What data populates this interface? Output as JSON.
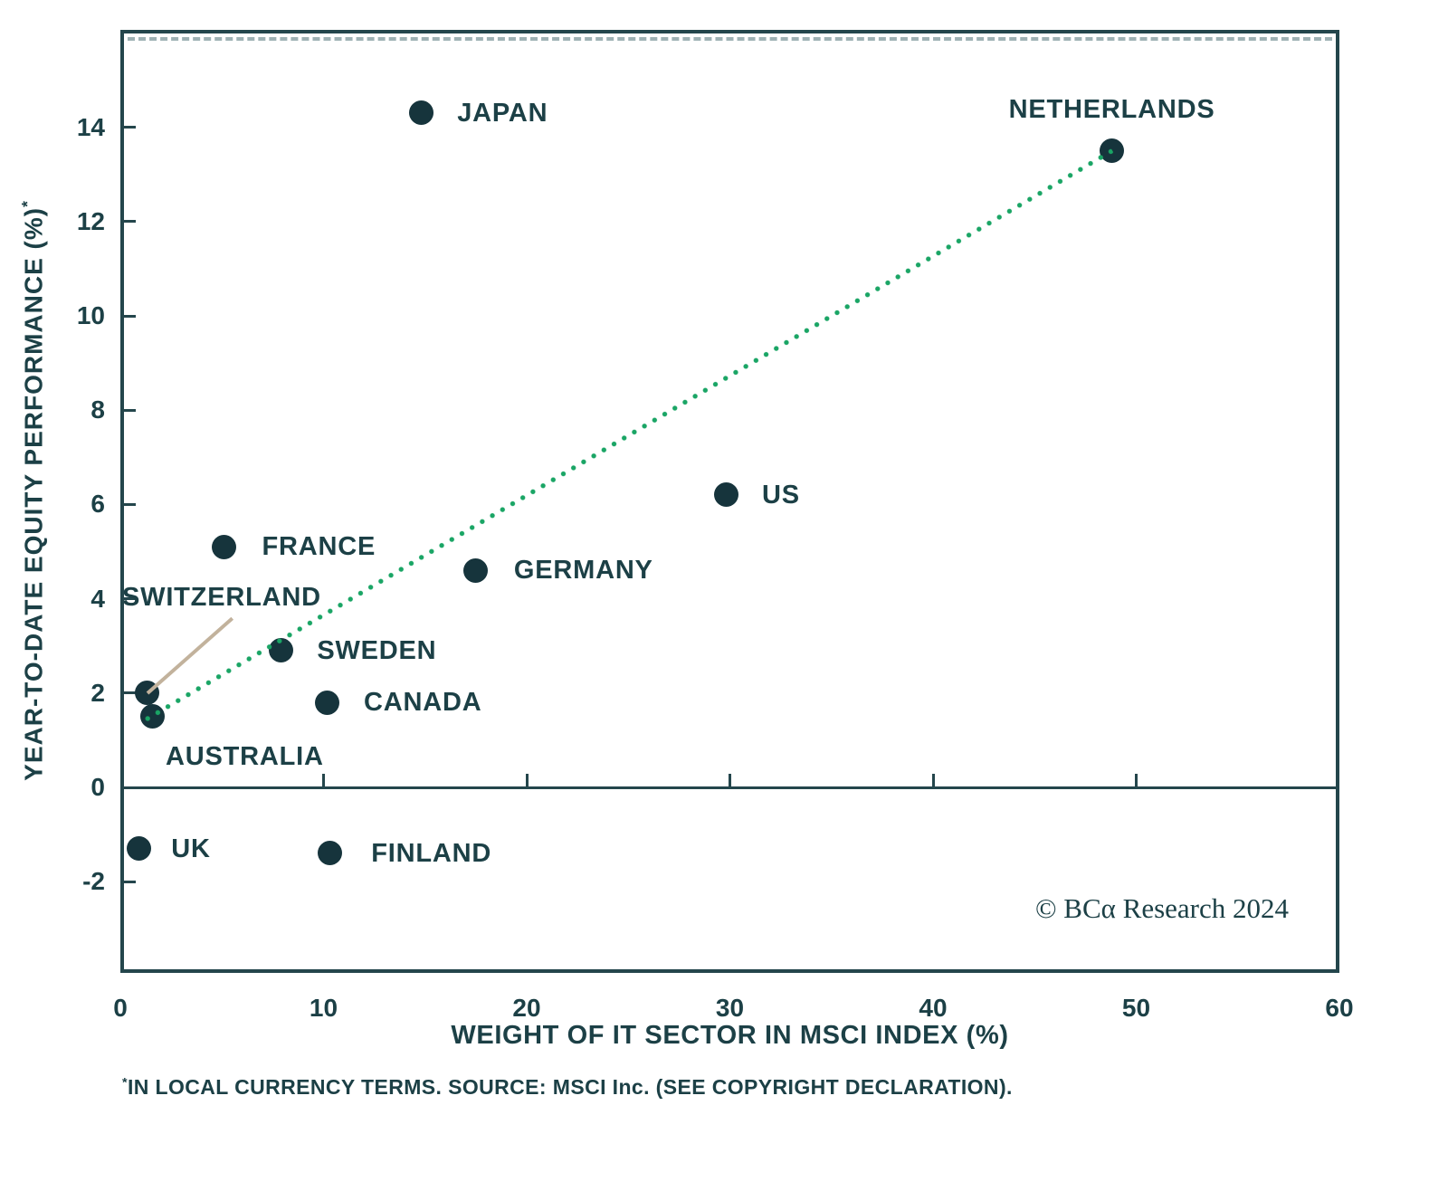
{
  "chart_data": {
    "type": "scatter",
    "title": "",
    "xlabel": "WEIGHT OF IT SECTOR IN MSCI INDEX (%)",
    "ylabel": "YEAR-TO-DATE EQUITY PERFORMANCE (%)",
    "ylabel_superscript": "*",
    "xlim": [
      0,
      60
    ],
    "ylim": [
      -3.9,
      16.1
    ],
    "x_ticks": [
      0,
      10,
      20,
      30,
      40,
      50,
      60
    ],
    "y_ticks": [
      14,
      12,
      10,
      8,
      6,
      4,
      2,
      0,
      -2
    ],
    "grid": false,
    "legend": null,
    "points": [
      {
        "label": "JAPAN",
        "x": 14.8,
        "y": 14.3
      },
      {
        "label": "NETHERLANDS",
        "x": 48.8,
        "y": 13.5
      },
      {
        "label": "US",
        "x": 29.8,
        "y": 6.2
      },
      {
        "label": "FRANCE",
        "x": 5.1,
        "y": 5.1
      },
      {
        "label": "GERMANY",
        "x": 17.5,
        "y": 4.6
      },
      {
        "label": "SWEDEN",
        "x": 7.9,
        "y": 2.9
      },
      {
        "label": "CANADA",
        "x": 10.2,
        "y": 1.8
      },
      {
        "label": "SWITZERLAND",
        "x": 1.3,
        "y": 2.0
      },
      {
        "label": "AUSTRALIA",
        "x": 1.6,
        "y": 1.5
      },
      {
        "label": "UK",
        "x": 0.9,
        "y": -1.3
      },
      {
        "label": "FINLAND",
        "x": 10.3,
        "y": -1.4
      }
    ],
    "trendline": {
      "x1": 1.1,
      "y1": 1.4,
      "x2": 48.8,
      "y2": 13.5,
      "style": "dotted",
      "color": "#1aa565"
    }
  },
  "footnote": {
    "star": "*",
    "text": "IN LOCAL CURRENCY TERMS. SOURCE: MSCI Inc. (SEE COPYRIGHT DECLARATION)."
  },
  "copyright": "© BCα Research 2024",
  "colors": {
    "ink": "#1c4046",
    "frame": "#24464c",
    "dot": "#16343c",
    "trend": "#1aa565",
    "leader_line": "#c2b29c"
  }
}
